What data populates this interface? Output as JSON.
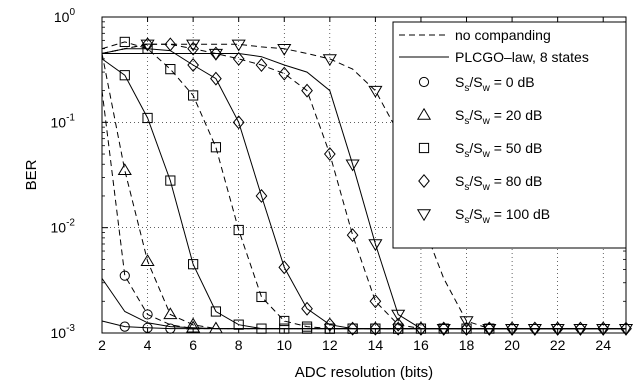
{
  "chart_data": {
    "type": "line",
    "xlabel": "ADC resolution (bits)",
    "ylabel": "BER",
    "xlim": [
      2,
      25
    ],
    "ylim": [
      0.001,
      1
    ],
    "yscale": "log",
    "grid": true,
    "legend_position": "top-right",
    "x_ticks": [
      "2",
      "4",
      "6",
      "8",
      "10",
      "12",
      "14",
      "16",
      "18",
      "20",
      "22",
      "24"
    ],
    "y_ticks": [
      {
        "base": "10",
        "exp": "0"
      },
      {
        "base": "10",
        "exp": "-1"
      },
      {
        "base": "10",
        "exp": "-2"
      },
      {
        "base": "10",
        "exp": "-3"
      }
    ],
    "legend": {
      "line_entries": [
        {
          "label": "no companding",
          "dash": "dashed"
        },
        {
          "label": "PLCGO–law, 8 states",
          "dash": "solid"
        }
      ],
      "marker_entries": [
        {
          "prefix": "S",
          "sub1": "s",
          "mid": "/S",
          "sub2": "w",
          "suffix": " = 0 dB",
          "marker": "circle"
        },
        {
          "prefix": "S",
          "sub1": "s",
          "mid": "/S",
          "sub2": "w",
          "suffix": " = 20 dB",
          "marker": "triangle"
        },
        {
          "prefix": "S",
          "sub1": "s",
          "mid": "/S",
          "sub2": "w",
          "suffix": " = 50 dB",
          "marker": "square"
        },
        {
          "prefix": "S",
          "sub1": "s",
          "mid": "/S",
          "sub2": "w",
          "suffix": " = 80 dB",
          "marker": "diamond"
        },
        {
          "prefix": "S",
          "sub1": "s",
          "mid": "/S",
          "sub2": "w",
          "suffix": " = 100 dB",
          "marker": "triangle-down"
        }
      ]
    },
    "series": [
      {
        "marker": "circle",
        "dash": "dashed",
        "x": [
          2,
          3,
          4,
          5,
          6,
          7,
          8,
          9,
          10,
          11,
          12,
          13,
          14,
          15,
          16,
          17,
          18,
          19,
          20,
          21,
          22,
          23,
          24,
          25
        ],
        "y": [
          0.2,
          0.0035,
          0.0015,
          0.0012,
          0.0011,
          0.0011,
          0.0011,
          0.0011,
          0.0011,
          0.0011,
          0.0011,
          0.0011,
          0.0011,
          0.0011,
          0.0011,
          0.0011,
          0.0011,
          0.0011,
          0.0011,
          0.0011,
          0.0011,
          0.0011,
          0.0011,
          0.0011
        ],
        "marker_x": [
          3,
          4
        ]
      },
      {
        "marker": "circle",
        "dash": "solid",
        "x": [
          2,
          3,
          4,
          5,
          6,
          7,
          8,
          9,
          10,
          11,
          12,
          13,
          14,
          15,
          16,
          17,
          18,
          19,
          20,
          21,
          22,
          23,
          24,
          25
        ],
        "y": [
          0.0013,
          0.00115,
          0.00112,
          0.0011,
          0.0011,
          0.0011,
          0.0011,
          0.0011,
          0.0011,
          0.0011,
          0.0011,
          0.0011,
          0.0011,
          0.0011,
          0.0011,
          0.0011,
          0.0011,
          0.0011,
          0.0011,
          0.0011,
          0.0011,
          0.0011,
          0.0011,
          0.0011
        ],
        "marker_x": [
          3,
          4,
          5
        ]
      },
      {
        "marker": "triangle",
        "dash": "dashed",
        "x": [
          2,
          3,
          4,
          5,
          6,
          7,
          8,
          9,
          10,
          11,
          12,
          13,
          14,
          15,
          16,
          17,
          18,
          19,
          20,
          21,
          22,
          23,
          24,
          25
        ],
        "y": [
          0.45,
          0.035,
          0.0048,
          0.0015,
          0.0012,
          0.0011,
          0.0011,
          0.0011,
          0.0011,
          0.0011,
          0.0011,
          0.0011,
          0.0011,
          0.0011,
          0.0011,
          0.0011,
          0.0011,
          0.0011,
          0.0011,
          0.0011,
          0.0011,
          0.0011,
          0.0011,
          0.0011
        ],
        "marker_x": [
          3,
          4,
          5,
          6,
          7
        ]
      },
      {
        "marker": "triangle",
        "dash": "solid",
        "x": [
          2,
          3,
          4,
          5,
          6,
          7,
          8,
          9,
          10,
          11,
          12,
          13,
          14,
          15,
          16,
          17,
          18,
          19,
          20,
          21,
          22,
          23,
          24,
          25
        ],
        "y": [
          0.0033,
          0.0016,
          0.00125,
          0.00115,
          0.00112,
          0.0011,
          0.0011,
          0.0011,
          0.0011,
          0.0011,
          0.0011,
          0.0011,
          0.0011,
          0.0011,
          0.0011,
          0.0011,
          0.0011,
          0.0011,
          0.0011,
          0.0011,
          0.0011,
          0.0011,
          0.0011,
          0.0011
        ],
        "marker_x": [
          6
        ]
      },
      {
        "marker": "square",
        "dash": "dashed",
        "x": [
          2,
          3,
          4,
          5,
          6,
          7,
          8,
          9,
          10,
          11,
          12,
          13,
          14,
          15,
          16,
          17,
          18,
          19,
          20,
          21,
          22,
          23,
          24,
          25
        ],
        "y": [
          0.5,
          0.58,
          0.5,
          0.32,
          0.18,
          0.058,
          0.0095,
          0.0022,
          0.0013,
          0.00115,
          0.0011,
          0.0011,
          0.0011,
          0.0011,
          0.0011,
          0.0011,
          0.0011,
          0.0011,
          0.0011,
          0.0011,
          0.0011,
          0.0011,
          0.0011,
          0.0011
        ],
        "marker_x": [
          3,
          4,
          5,
          6,
          7,
          8,
          9,
          10,
          11,
          12,
          13,
          14,
          15
        ]
      },
      {
        "marker": "square",
        "dash": "solid",
        "x": [
          2,
          3,
          4,
          5,
          6,
          7,
          8,
          9,
          10,
          11,
          12,
          13,
          14,
          15,
          16,
          17,
          18,
          19,
          20,
          21,
          22,
          23,
          24,
          25
        ],
        "y": [
          0.4,
          0.28,
          0.11,
          0.028,
          0.0045,
          0.0016,
          0.0012,
          0.0011,
          0.0011,
          0.0011,
          0.0011,
          0.0011,
          0.0011,
          0.0011,
          0.0011,
          0.0011,
          0.0011,
          0.0011,
          0.0011,
          0.0011,
          0.0011,
          0.0011,
          0.0011,
          0.0011
        ],
        "marker_x": [
          3,
          4,
          5,
          6,
          7,
          8,
          9,
          10,
          11,
          12,
          13,
          14,
          15,
          16,
          17,
          18,
          19
        ]
      },
      {
        "marker": "diamond",
        "dash": "dashed",
        "x": [
          2,
          3,
          4,
          5,
          6,
          7,
          8,
          9,
          10,
          11,
          12,
          13,
          14,
          15,
          16,
          17,
          18,
          19,
          20,
          21,
          22,
          23,
          24,
          25
        ],
        "y": [
          0.45,
          0.5,
          0.55,
          0.55,
          0.5,
          0.45,
          0.4,
          0.35,
          0.29,
          0.2,
          0.05,
          0.0085,
          0.002,
          0.0012,
          0.0011,
          0.0011,
          0.0011,
          0.0011,
          0.0011,
          0.0011,
          0.0011,
          0.0011,
          0.0011,
          0.0011
        ],
        "marker_x": [
          4,
          5,
          6,
          7,
          8,
          9,
          10,
          11,
          12,
          13,
          14,
          15,
          16,
          17,
          18,
          19,
          20,
          21,
          22,
          23,
          24
        ]
      },
      {
        "marker": "diamond",
        "dash": "solid",
        "x": [
          2,
          3,
          4,
          5,
          6,
          7,
          8,
          9,
          10,
          11,
          12,
          13,
          14,
          15,
          16,
          17,
          18,
          19,
          20,
          21,
          22,
          23,
          24,
          25
        ],
        "y": [
          0.45,
          0.5,
          0.5,
          0.48,
          0.35,
          0.26,
          0.1,
          0.02,
          0.0042,
          0.0017,
          0.0012,
          0.0011,
          0.0011,
          0.0011,
          0.0011,
          0.0011,
          0.0011,
          0.0011,
          0.0011,
          0.0011,
          0.0011,
          0.0011,
          0.0011,
          0.0011
        ],
        "marker_x": [
          6,
          7,
          8,
          9,
          10,
          11,
          12,
          13,
          14,
          15,
          16,
          17,
          18,
          19,
          20,
          21,
          22,
          23,
          24,
          25
        ]
      },
      {
        "marker": "triangle-down",
        "dash": "dashed",
        "x": [
          2,
          3,
          4,
          5,
          6,
          7,
          8,
          9,
          10,
          11,
          12,
          13,
          14,
          15,
          16,
          17,
          18,
          19,
          20,
          21,
          22,
          23,
          24,
          25
        ],
        "y": [
          0.45,
          0.5,
          0.55,
          0.55,
          0.55,
          0.55,
          0.55,
          0.52,
          0.5,
          0.45,
          0.4,
          0.32,
          0.2,
          0.08,
          0.012,
          0.0033,
          0.0013,
          0.0011,
          0.0011,
          0.0011,
          0.0011,
          0.0011,
          0.0011,
          0.0011
        ],
        "marker_x": [
          4,
          6,
          8,
          10,
          12,
          14,
          16,
          18,
          20,
          22,
          24
        ]
      },
      {
        "marker": "triangle-down",
        "dash": "solid",
        "x": [
          2,
          3,
          4,
          5,
          6,
          7,
          8,
          9,
          10,
          11,
          12,
          13,
          14,
          15,
          16,
          17,
          18,
          19,
          20,
          21,
          22,
          23,
          24,
          25
        ],
        "y": [
          0.45,
          0.45,
          0.45,
          0.45,
          0.45,
          0.45,
          0.45,
          0.42,
          0.35,
          0.3,
          0.2,
          0.04,
          0.007,
          0.0015,
          0.0011,
          0.0011,
          0.0011,
          0.0011,
          0.0011,
          0.0011,
          0.0011,
          0.0011,
          0.0011,
          0.0011
        ],
        "marker_x": [
          7,
          13,
          14,
          15,
          17,
          19,
          21,
          23,
          25
        ]
      }
    ]
  }
}
